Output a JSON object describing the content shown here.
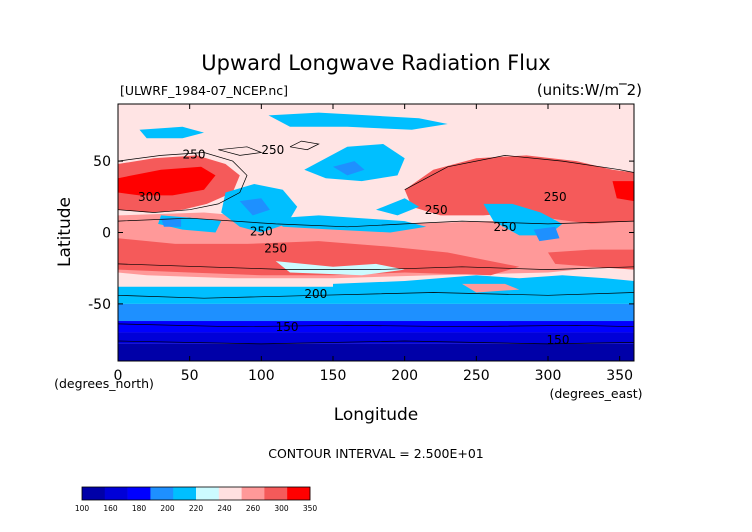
{
  "chart_data": {
    "type": "heatmap",
    "title": "Upward Longwave Radiation Flux",
    "subtitle_left": "[ULWRF_1984-07_NCEP.nc]",
    "subtitle_right": "(units:W/m^2)",
    "xlabel": "Longitude",
    "ylabel": "Latitude",
    "x_unit_label": "(degrees_east)",
    "y_unit_label": "(degrees_north)",
    "xlim": [
      0,
      360
    ],
    "ylim": [
      -90,
      90
    ],
    "x_ticks": [
      0,
      50,
      100,
      150,
      200,
      250,
      300,
      350
    ],
    "y_ticks": [
      -50,
      0,
      50
    ],
    "contour_interval_text": "CONTOUR INTERVAL = 2.500E+01",
    "contour_labels": [
      {
        "text": "250",
        "lon": 53,
        "lat": 52
      },
      {
        "text": "300",
        "lon": 22,
        "lat": 22
      },
      {
        "text": "250",
        "lon": 108,
        "lat": 55
      },
      {
        "text": "250",
        "lon": 100,
        "lat": -2
      },
      {
        "text": "250",
        "lon": 110,
        "lat": -14
      },
      {
        "text": "250",
        "lon": 222,
        "lat": 13
      },
      {
        "text": "250",
        "lon": 270,
        "lat": 1
      },
      {
        "text": "250",
        "lon": 305,
        "lat": 22
      },
      {
        "text": "200",
        "lon": 138,
        "lat": -46
      },
      {
        "text": "150",
        "lon": 118,
        "lat": -69
      },
      {
        "text": "150",
        "lon": 307,
        "lat": -78
      }
    ],
    "colorbar": {
      "levels": [
        100,
        140,
        160,
        180,
        200,
        220,
        240,
        250,
        260,
        300,
        350
      ],
      "tick_labels": [
        "100",
        "160",
        "180",
        "200",
        "220",
        "240",
        "260",
        "300",
        "350"
      ],
      "colors": [
        "#0000a8",
        "#0000d8",
        "#0000ff",
        "#1e90ff",
        "#00bfff",
        "#ccfbff",
        "#ffe0e0",
        "#ff9999",
        "#f55a5a",
        "#ff0000"
      ]
    }
  }
}
